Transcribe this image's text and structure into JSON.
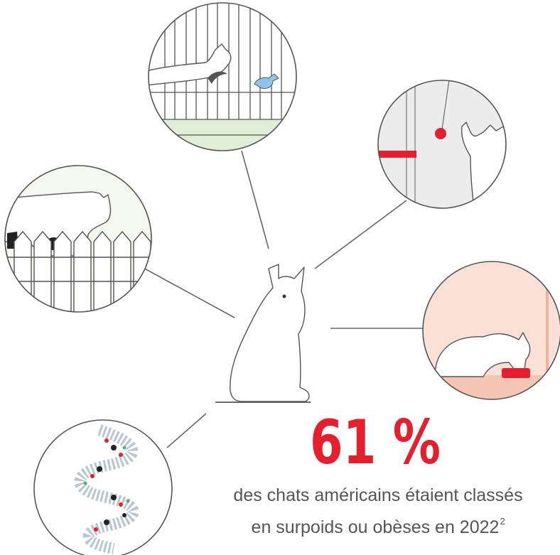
{
  "stat": {
    "value": "61 %",
    "caption_lines": [
      "des chats américains étaient classés",
      "en surpoids ou obèses en 2022"
    ],
    "footnote": "2"
  }
}
